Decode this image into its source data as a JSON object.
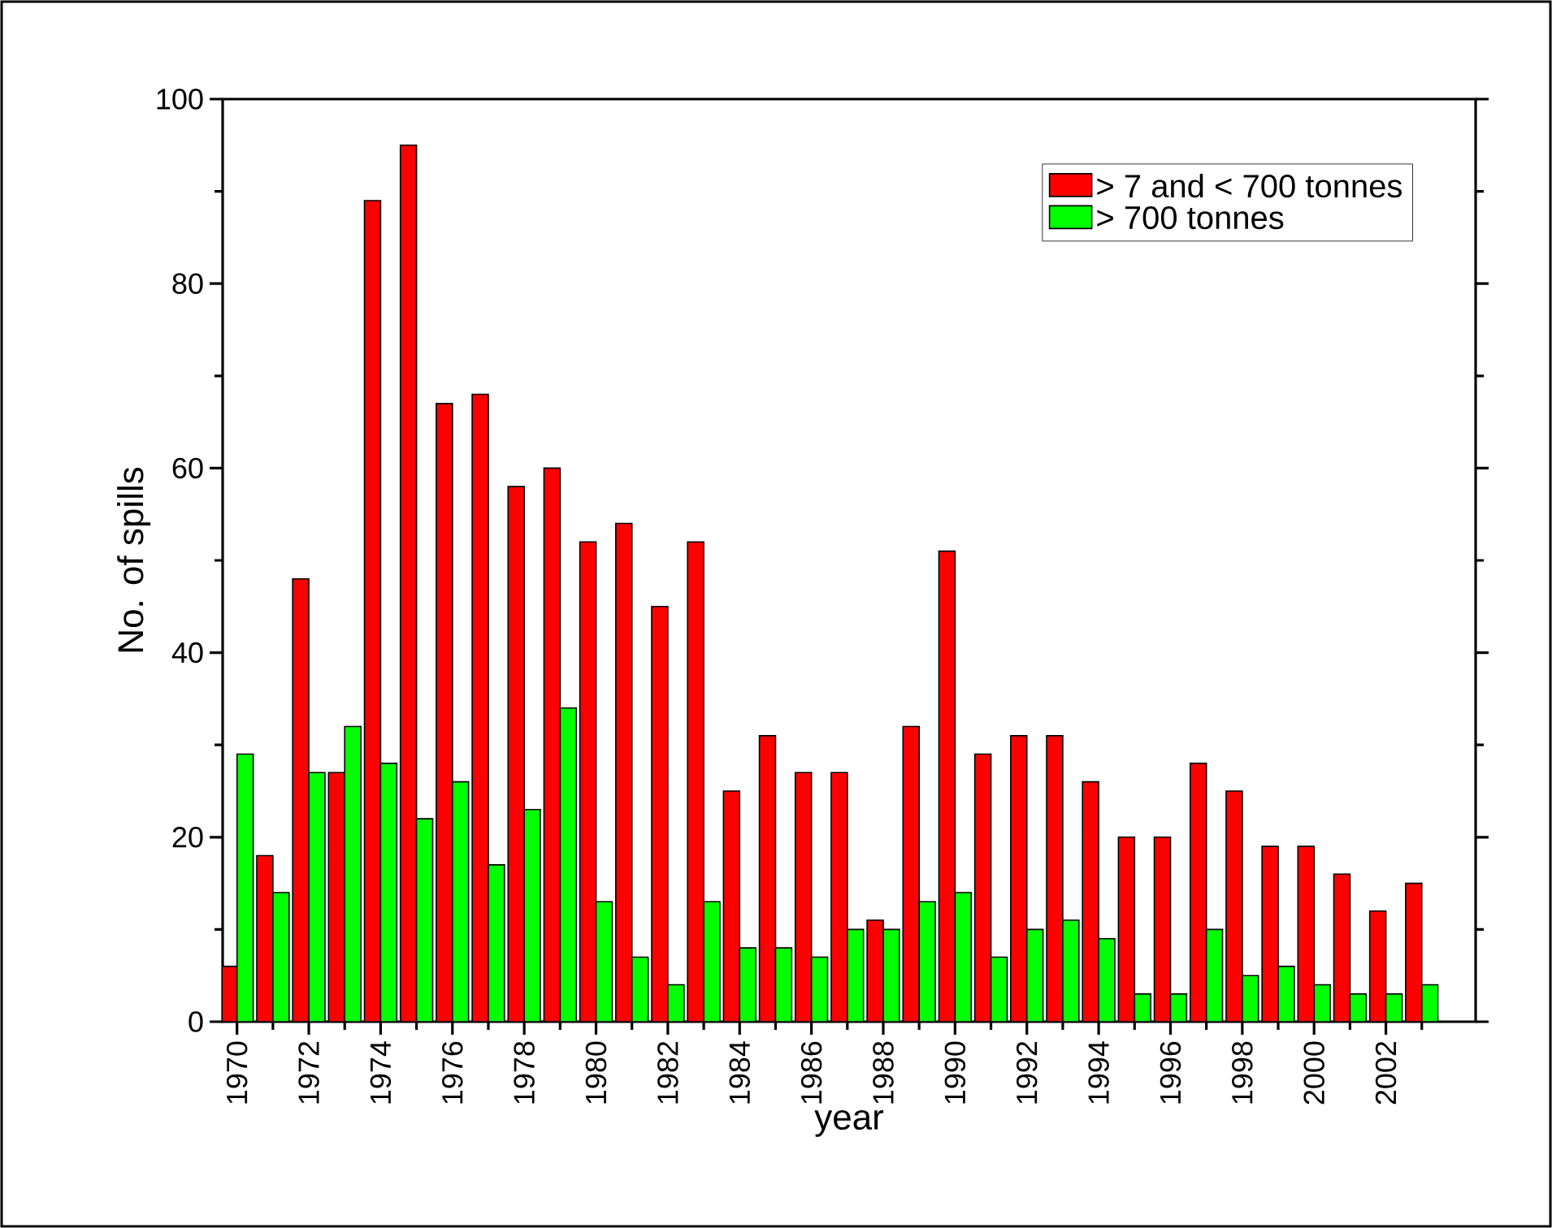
{
  "chart_data": {
    "type": "bar",
    "xlabel": "year",
    "ylabel": "No. of spills",
    "x": [
      1970,
      1971,
      1972,
      1973,
      1974,
      1975,
      1976,
      1977,
      1978,
      1979,
      1980,
      1981,
      1982,
      1983,
      1984,
      1985,
      1986,
      1987,
      1988,
      1989,
      1990,
      1991,
      1992,
      1993,
      1994,
      1995,
      1996,
      1997,
      1998,
      1999,
      2000,
      2001,
      2002,
      2003
    ],
    "series": [
      {
        "name": "> 7 and < 700 tonnes",
        "color": "#ff0000",
        "values": [
          6,
          18,
          48,
          27,
          89,
          95,
          67,
          68,
          58,
          60,
          52,
          54,
          45,
          52,
          25,
          31,
          27,
          27,
          11,
          32,
          51,
          29,
          31,
          31,
          26,
          20,
          20,
          28,
          25,
          19,
          19,
          16,
          12,
          15
        ]
      },
      {
        "name": "> 700 tonnes",
        "color": "#00ff00",
        "values": [
          29,
          14,
          27,
          32,
          28,
          22,
          26,
          17,
          23,
          34,
          13,
          7,
          4,
          13,
          8,
          8,
          7,
          10,
          10,
          13,
          14,
          7,
          10,
          11,
          9,
          3,
          3,
          10,
          5,
          6,
          4,
          3,
          3,
          4
        ]
      }
    ],
    "xlim": [
      1969.6,
      2004.5
    ],
    "ylim": [
      0,
      100
    ],
    "xticks": [
      1970,
      {
        "value": 1971,
        "label": null
      },
      1972,
      {
        "value": 1973,
        "label": null
      },
      1974,
      {
        "value": 1975,
        "label": null
      },
      1976,
      {
        "value": 1977,
        "label": null
      },
      1978,
      {
        "value": 1979,
        "label": null
      },
      1980,
      {
        "value": 1981,
        "label": null
      },
      1982,
      {
        "value": 1983,
        "label": null
      },
      1984,
      {
        "value": 1985,
        "label": null
      },
      1986,
      {
        "value": 1987,
        "label": null
      },
      1988,
      {
        "value": 1989,
        "label": null
      },
      1990,
      {
        "value": 1991,
        "label": null
      },
      1992,
      {
        "value": 1993,
        "label": null
      },
      1994,
      {
        "value": 1995,
        "label": null
      },
      1996,
      {
        "value": 1997,
        "label": null
      },
      1998,
      {
        "value": 1999,
        "label": null
      },
      2000,
      {
        "value": 2001,
        "label": null
      },
      2002,
      {
        "value": 2003,
        "label": null
      }
    ],
    "yticks": [
      0,
      {
        "value": 10,
        "label": null
      },
      20,
      {
        "value": 30,
        "label": null
      },
      40,
      {
        "value": 50,
        "label": null
      },
      60,
      {
        "value": 70,
        "label": null
      },
      80,
      {
        "value": 90,
        "label": null
      },
      100
    ],
    "legend": "top right",
    "grid": false
  }
}
